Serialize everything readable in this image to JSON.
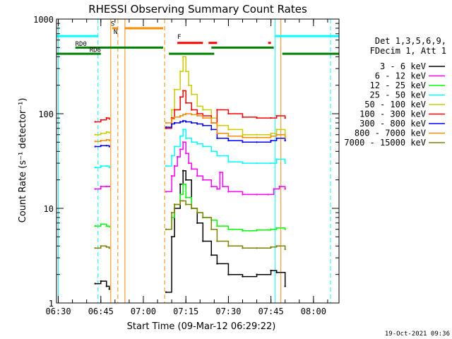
{
  "chart_data": {
    "type": "line",
    "title": "RHESSI Observing Summary Count Rates",
    "xlabel": "Start Time (09-Mar-12 06:29:22)",
    "ylabel": "Count Rate (s⁻¹ detector⁻¹)",
    "y_scale": "log",
    "ylim": [
      1,
      1000
    ],
    "xlim": [
      "06:29:22",
      "08:09:00"
    ],
    "y_ticks": [
      "1",
      "10",
      "100",
      "1000"
    ],
    "x_ticks": [
      "06:30",
      "06:45",
      "07:00",
      "07:15",
      "07:30",
      "07:45",
      "08:00"
    ],
    "legend_header": [
      "Det 1,3,5,6,9,",
      "FDecim 1, Att 1"
    ],
    "legend_position": "right",
    "footer": "19-Oct-2021 09:36",
    "series": [
      {
        "name": "3 - 6 keV",
        "color": "#000000",
        "times": [
          "06:43",
          "06:45",
          "06:47",
          "06:48",
          "07:06",
          "07:08",
          "07:10",
          "07:11",
          "07:13",
          "07:14",
          "07:15",
          "07:17",
          "07:19",
          "07:21",
          "07:24",
          "07:26",
          "07:30",
          "07:35",
          "07:40",
          "07:45",
          "07:47",
          "07:50"
        ],
        "values": [
          1.6,
          1.7,
          1.5,
          1.4,
          null,
          1.3,
          5,
          10,
          18,
          25,
          20,
          10,
          7,
          4.5,
          3.2,
          2.6,
          2.0,
          1.9,
          2.0,
          2.2,
          2.1,
          1.5
        ]
      },
      {
        "name": "6 - 12 keV",
        "color": "#ff00ff",
        "times": [
          "06:43",
          "06:45",
          "06:47",
          "06:48",
          "07:06",
          "07:08",
          "07:10",
          "07:11",
          "07:12",
          "07:13",
          "07:14",
          "07:15",
          "07:16",
          "07:17",
          "07:19",
          "07:21",
          "07:24",
          "07:26",
          "07:27",
          "07:28",
          "07:30",
          "07:35",
          "07:40",
          "07:44",
          "07:46",
          "07:48",
          "07:50"
        ],
        "values": [
          16,
          17,
          17,
          17,
          null,
          15,
          22,
          28,
          35,
          42,
          50,
          38,
          30,
          26,
          22,
          20,
          17,
          16,
          24,
          17,
          15,
          14,
          14,
          14,
          16,
          17,
          16
        ]
      },
      {
        "name": "12 - 25 keV",
        "color": "#00ff00",
        "times": [
          "06:43",
          "06:45",
          "06:47",
          "06:48",
          "07:06",
          "07:08",
          "07:10",
          "07:11",
          "07:13",
          "07:14",
          "07:15",
          "07:17",
          "07:19",
          "07:21",
          "07:24",
          "07:26",
          "07:30",
          "07:35",
          "07:40",
          "07:45",
          "07:47",
          "07:50"
        ],
        "values": [
          6.5,
          6.8,
          6.5,
          6.4,
          null,
          6,
          8,
          11,
          14,
          18,
          13,
          10,
          9,
          8,
          7.5,
          6.5,
          6,
          5.8,
          5.9,
          6,
          6.2,
          6
        ]
      },
      {
        "name": "25 - 50 keV",
        "color": "#00ffff",
        "times": [
          "06:43",
          "06:45",
          "06:47",
          "06:48",
          "07:06",
          "07:08",
          "07:10",
          "07:11",
          "07:13",
          "07:14",
          "07:15",
          "07:17",
          "07:19",
          "07:21",
          "07:24",
          "07:26",
          "07:30",
          "07:35",
          "07:40",
          "07:45",
          "07:47",
          "07:50"
        ],
        "values": [
          27,
          28,
          28,
          27,
          null,
          28,
          36,
          45,
          58,
          68,
          55,
          50,
          48,
          45,
          40,
          36,
          31,
          30,
          30,
          30,
          33,
          30
        ]
      },
      {
        "name": "50 - 100 keV",
        "color": "#cccc00",
        "times": [
          "06:43",
          "06:45",
          "06:47",
          "06:48",
          "07:06",
          "07:08",
          "07:10",
          "07:11",
          "07:13",
          "07:14",
          "07:15",
          "07:16",
          "07:17",
          "07:19",
          "07:21",
          "07:24",
          "07:26",
          "07:30",
          "07:35",
          "07:40",
          "07:45",
          "07:47",
          "07:50"
        ],
        "values": [
          60,
          62,
          64,
          63,
          null,
          70,
          110,
          180,
          280,
          400,
          280,
          200,
          160,
          120,
          110,
          90,
          75,
          68,
          60,
          60,
          62,
          68,
          62
        ]
      },
      {
        "name": "100 - 300 keV",
        "color": "#ff0000",
        "times": [
          "06:43",
          "06:45",
          "06:47",
          "06:48",
          "07:06",
          "07:08",
          "07:10",
          "07:11",
          "07:13",
          "07:14",
          "07:15",
          "07:17",
          "07:19",
          "07:21",
          "07:24",
          "07:26",
          "07:30",
          "07:35",
          "07:40",
          "07:45",
          "07:47",
          "07:50"
        ],
        "values": [
          82,
          86,
          90,
          88,
          null,
          70,
          90,
          110,
          150,
          175,
          130,
          110,
          100,
          95,
          80,
          110,
          100,
          92,
          90,
          90,
          95,
          90
        ]
      },
      {
        "name": "300 - 800 keV",
        "color": "#0000ff",
        "times": [
          "06:43",
          "06:45",
          "06:47",
          "06:48",
          "07:06",
          "07:08",
          "07:10",
          "07:11",
          "07:13",
          "07:14",
          "07:15",
          "07:17",
          "07:19",
          "07:21",
          "07:24",
          "07:26",
          "07:30",
          "07:35",
          "07:40",
          "07:45",
          "07:47",
          "07:50"
        ],
        "values": [
          45,
          46,
          46,
          45,
          null,
          72,
          78,
          80,
          82,
          84,
          82,
          80,
          78,
          75,
          68,
          55,
          52,
          50,
          50,
          52,
          55,
          52
        ]
      },
      {
        "name": "800 - 7000 keV",
        "color": "#ff8c00",
        "times": [
          "06:43",
          "06:45",
          "06:47",
          "06:48",
          "07:06",
          "07:08",
          "07:10",
          "07:11",
          "07:13",
          "07:14",
          "07:15",
          "07:17",
          "07:19",
          "07:21",
          "07:24",
          "07:26",
          "07:30",
          "07:35",
          "07:40",
          "07:45",
          "07:47",
          "07:50"
        ],
        "values": [
          51,
          52,
          53,
          52,
          null,
          80,
          88,
          92,
          95,
          98,
          100,
          98,
          95,
          90,
          80,
          62,
          58,
          56,
          56,
          58,
          60,
          56
        ]
      },
      {
        "name": "7000 - 15000 keV",
        "color": "#808000",
        "times": [
          "06:43",
          "06:45",
          "06:47",
          "06:48",
          "07:06",
          "07:08",
          "07:10",
          "07:11",
          "07:13",
          "07:14",
          "07:15",
          "07:17",
          "07:19",
          "07:21",
          "07:24",
          "07:26",
          "07:30",
          "07:35",
          "07:40",
          "07:45",
          "07:47",
          "07:50"
        ],
        "values": [
          3.8,
          4,
          3.9,
          3.8,
          null,
          6,
          9,
          11,
          12,
          12,
          11,
          10,
          9,
          8,
          6,
          4.5,
          4,
          3.8,
          3.8,
          3.9,
          4,
          3.7
        ]
      }
    ],
    "flag_labels": {
      "saa": "S",
      "night": "N",
      "flare": "F",
      "rd0": "RD0",
      "rd6": "RD6"
    },
    "flag_colors": {
      "saa": "#ff8c00",
      "night": "#00ffff",
      "flare": "#ff0000",
      "rd": "#008000"
    }
  }
}
